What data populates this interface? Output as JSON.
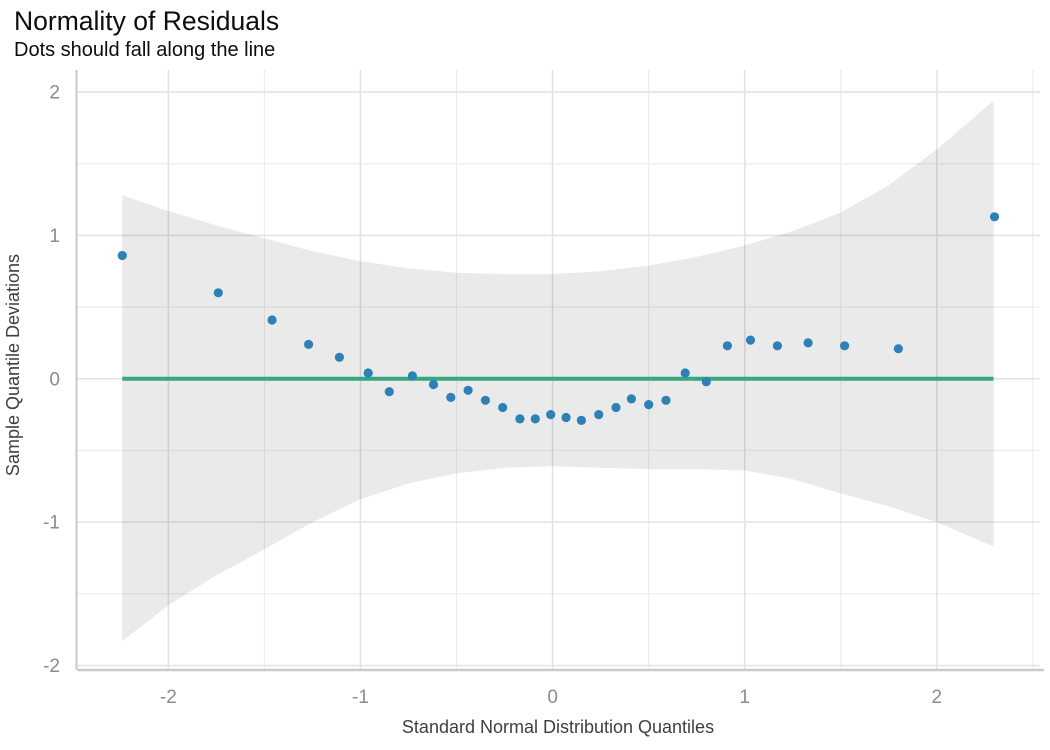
{
  "page": {
    "background": "#FFFFFF"
  },
  "chart_data": {
    "type": "scatter",
    "title": "Normality of Residuals",
    "subtitle": "Dots should fall along the line",
    "xlabel": "Standard Normal Distribution Quantiles",
    "ylabel": "Sample Quantile Deviations",
    "x_ticks": [
      -2,
      -1,
      0,
      1,
      2
    ],
    "y_ticks": [
      -2,
      -1,
      0,
      1,
      2
    ],
    "xlim": [
      -2.473,
      2.537
    ],
    "ylim": [
      -2.021,
      2.154
    ],
    "grid": true,
    "legend": "none",
    "reference_line": {
      "y": 0,
      "x_start": -2.24,
      "x_end": 2.295,
      "color": "#36A87E",
      "width": 4
    },
    "confidence_band": {
      "x": [
        -2.24,
        -2.0,
        -1.75,
        -1.5,
        -1.25,
        -1.0,
        -0.75,
        -0.5,
        -0.25,
        0.0,
        0.25,
        0.5,
        0.75,
        1.0,
        1.25,
        1.5,
        1.75,
        2.0,
        2.295
      ],
      "upper": [
        1.28,
        1.17,
        1.07,
        0.98,
        0.89,
        0.82,
        0.77,
        0.74,
        0.73,
        0.73,
        0.75,
        0.79,
        0.85,
        0.93,
        1.03,
        1.16,
        1.35,
        1.6,
        1.94
      ],
      "lower": [
        -1.83,
        -1.58,
        -1.37,
        -1.19,
        -1.0,
        -0.84,
        -0.73,
        -0.66,
        -0.62,
        -0.61,
        -0.62,
        -0.63,
        -0.63,
        -0.64,
        -0.7,
        -0.8,
        -0.89,
        -1.0,
        -1.17
      ],
      "color": "rgba(0,0,0,0.082)"
    },
    "points": [
      [
        -2.24,
        0.86
      ],
      [
        -1.74,
        0.6
      ],
      [
        -1.46,
        0.41
      ],
      [
        -1.27,
        0.24
      ],
      [
        -1.11,
        0.15
      ],
      [
        -0.96,
        0.04
      ],
      [
        -0.85,
        -0.09
      ],
      [
        -0.73,
        0.02
      ],
      [
        -0.62,
        -0.04
      ],
      [
        -0.53,
        -0.13
      ],
      [
        -0.44,
        -0.08
      ],
      [
        -0.35,
        -0.15
      ],
      [
        -0.26,
        -0.2
      ],
      [
        -0.17,
        -0.28
      ],
      [
        -0.09,
        -0.28
      ],
      [
        -0.01,
        -0.25
      ],
      [
        0.07,
        -0.27
      ],
      [
        0.15,
        -0.29
      ],
      [
        0.24,
        -0.25
      ],
      [
        0.33,
        -0.2
      ],
      [
        0.41,
        -0.14
      ],
      [
        0.5,
        -0.18
      ],
      [
        0.59,
        -0.15
      ],
      [
        0.69,
        0.04
      ],
      [
        0.8,
        -0.02
      ],
      [
        0.91,
        0.23
      ],
      [
        1.03,
        0.27
      ],
      [
        1.17,
        0.23
      ],
      [
        1.33,
        0.25
      ],
      [
        1.52,
        0.23
      ],
      [
        1.8,
        0.21
      ],
      [
        2.3,
        1.13
      ]
    ],
    "point_color": "#2D81B4",
    "point_radius": 4.6,
    "colors": {
      "grid_major": "#E3E3E3",
      "grid_minor": "#ECECEC",
      "axis_line": "#C9C9C9",
      "tick_label": "#8C8C8C",
      "axis_title": "#3F3F3F",
      "title": "#0D0D0D",
      "subtitle": "#0D0D0D"
    }
  }
}
